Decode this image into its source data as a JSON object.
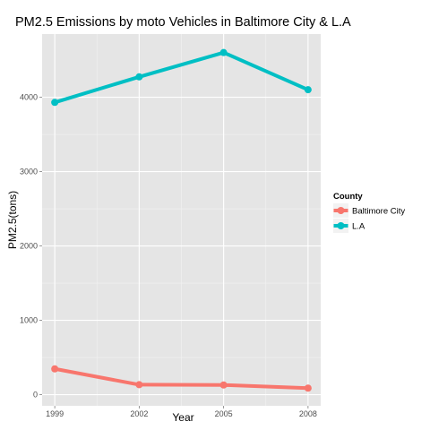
{
  "chart_data": {
    "type": "line",
    "title": "PM2.5 Emissions by moto Vehicles in Baltimore City & L.A",
    "xlabel": "Year",
    "ylabel": "PM2.5(tons)",
    "x": [
      1999,
      2002,
      2005,
      2008
    ],
    "x_ticks": [
      "1999",
      "2002",
      "2005",
      "2008"
    ],
    "xlim": [
      1998.55,
      2008.45
    ],
    "ylim": [
      -150,
      4850
    ],
    "y_ticks": [
      0,
      1000,
      2000,
      3000,
      4000
    ],
    "y_tick_labels": [
      "0",
      "1000",
      "2000",
      "3000",
      "4000"
    ],
    "grid": true,
    "legend": {
      "title": "County",
      "position": "right"
    },
    "series": [
      {
        "name": "Baltimore City",
        "color": "#F8766D",
        "values": [
          347,
          134,
          130,
          88
        ]
      },
      {
        "name": "L.A",
        "color": "#00BFC4",
        "values": [
          3931,
          4274,
          4601,
          4101
        ]
      }
    ]
  }
}
